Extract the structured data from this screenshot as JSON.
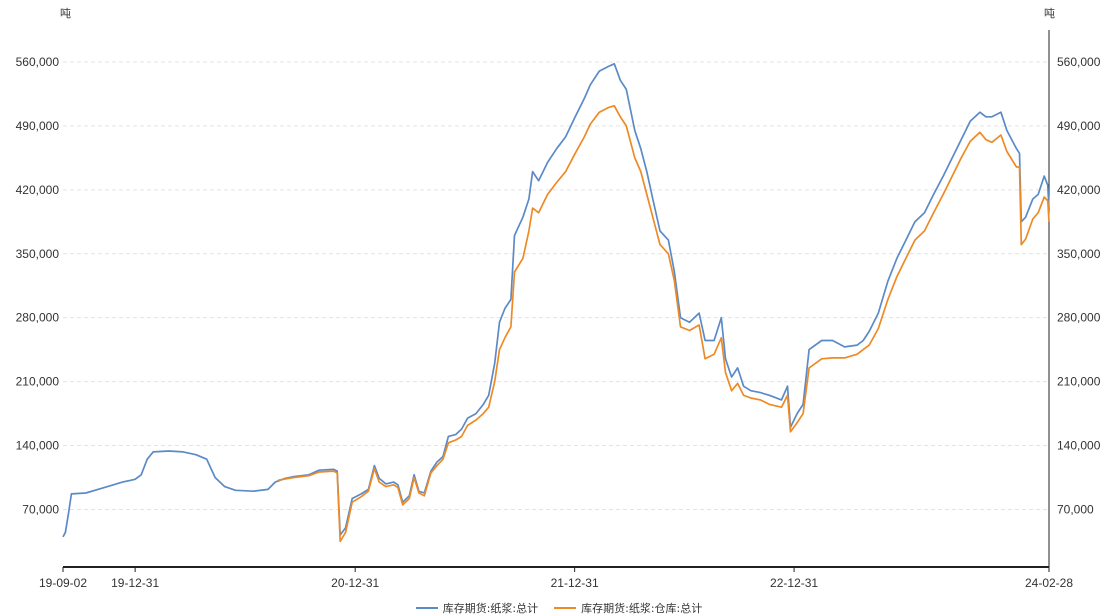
{
  "chart_data": {
    "type": "line",
    "unit_left": "吨",
    "unit_right": "吨",
    "ylim": [
      7000,
      595000
    ],
    "yticks": [
      70000,
      140000,
      210000,
      280000,
      350000,
      420000,
      490000,
      560000
    ],
    "ytick_labels": [
      "70,000",
      "140,000",
      "210,000",
      "280,000",
      "350,000",
      "420,000",
      "490,000",
      "560,000"
    ],
    "xlim": [
      "2019-09-02",
      "2024-02-28"
    ],
    "xticks": [
      "2019-09-02",
      "2019-12-31",
      "2020-12-31",
      "2021-12-31",
      "2022-12-31",
      "2024-02-28"
    ],
    "xtick_labels": [
      "19-09-02",
      "19-12-31",
      "20-12-31",
      "21-12-31",
      "22-12-31",
      "24-02-28"
    ],
    "grid": true,
    "legend_position": "bottom-center",
    "series": [
      {
        "name": "库存期货:纸浆:总计",
        "color": "#5b8ac8",
        "points": [
          [
            "2019-09-02",
            40000
          ],
          [
            "2019-09-06",
            45000
          ],
          [
            "2019-09-11",
            65000
          ],
          [
            "2019-09-16",
            87000
          ],
          [
            "2019-10-10",
            88000
          ],
          [
            "2019-10-30",
            92000
          ],
          [
            "2019-11-20",
            96000
          ],
          [
            "2019-12-10",
            100000
          ],
          [
            "2019-12-31",
            103000
          ],
          [
            "2020-01-10",
            108000
          ],
          [
            "2020-01-20",
            125000
          ],
          [
            "2020-01-30",
            133000
          ],
          [
            "2020-02-25",
            134000
          ],
          [
            "2020-03-20",
            133000
          ],
          [
            "2020-04-10",
            130000
          ],
          [
            "2020-04-28",
            125000
          ],
          [
            "2020-05-12",
            105000
          ],
          [
            "2020-05-28",
            95000
          ],
          [
            "2020-06-15",
            91000
          ],
          [
            "2020-07-15",
            90000
          ],
          [
            "2020-08-08",
            92000
          ],
          [
            "2020-08-20",
            100000
          ],
          [
            "2020-09-05",
            104000
          ],
          [
            "2020-09-20",
            106000
          ],
          [
            "2020-10-15",
            108000
          ],
          [
            "2020-11-01",
            113000
          ],
          [
            "2020-11-25",
            114000
          ],
          [
            "2020-12-01",
            112000
          ],
          [
            "2020-12-06",
            42000
          ],
          [
            "2020-12-15",
            50000
          ],
          [
            "2020-12-26",
            82000
          ],
          [
            "2021-01-10",
            87000
          ],
          [
            "2021-01-22",
            92000
          ],
          [
            "2021-02-01",
            118000
          ],
          [
            "2021-02-09",
            104000
          ],
          [
            "2021-02-20",
            98000
          ],
          [
            "2021-03-05",
            100000
          ],
          [
            "2021-03-12",
            97000
          ],
          [
            "2021-03-20",
            78000
          ],
          [
            "2021-03-31",
            85000
          ],
          [
            "2021-04-08",
            108000
          ],
          [
            "2021-04-16",
            90000
          ],
          [
            "2021-04-25",
            88000
          ],
          [
            "2021-05-06",
            112000
          ],
          [
            "2021-05-16",
            122000
          ],
          [
            "2021-05-26",
            128000
          ],
          [
            "2021-06-04",
            150000
          ],
          [
            "2021-06-16",
            152000
          ],
          [
            "2021-06-26",
            158000
          ],
          [
            "2021-07-06",
            170000
          ],
          [
            "2021-07-20",
            175000
          ],
          [
            "2021-08-01",
            185000
          ],
          [
            "2021-08-10",
            195000
          ],
          [
            "2021-08-20",
            230000
          ],
          [
            "2021-08-28",
            275000
          ],
          [
            "2021-09-06",
            290000
          ],
          [
            "2021-09-16",
            300000
          ],
          [
            "2021-09-22",
            370000
          ],
          [
            "2021-10-06",
            390000
          ],
          [
            "2021-10-16",
            410000
          ],
          [
            "2021-10-22",
            440000
          ],
          [
            "2021-11-01",
            430000
          ],
          [
            "2021-11-16",
            450000
          ],
          [
            "2021-12-01",
            465000
          ],
          [
            "2021-12-16",
            478000
          ],
          [
            "2022-01-01",
            500000
          ],
          [
            "2022-01-16",
            520000
          ],
          [
            "2022-01-26",
            535000
          ],
          [
            "2022-02-10",
            550000
          ],
          [
            "2022-02-25",
            555000
          ],
          [
            "2022-03-07",
            558000
          ],
          [
            "2022-03-17",
            540000
          ],
          [
            "2022-03-27",
            530000
          ],
          [
            "2022-04-10",
            485000
          ],
          [
            "2022-04-20",
            465000
          ],
          [
            "2022-04-30",
            440000
          ],
          [
            "2022-05-10",
            410000
          ],
          [
            "2022-05-22",
            375000
          ],
          [
            "2022-06-05",
            365000
          ],
          [
            "2022-06-15",
            330000
          ],
          [
            "2022-06-25",
            280000
          ],
          [
            "2022-07-10",
            275000
          ],
          [
            "2022-07-26",
            285000
          ],
          [
            "2022-08-05",
            255000
          ],
          [
            "2022-08-20",
            255000
          ],
          [
            "2022-09-01",
            280000
          ],
          [
            "2022-09-08",
            235000
          ],
          [
            "2022-09-18",
            215000
          ],
          [
            "2022-09-28",
            225000
          ],
          [
            "2022-10-08",
            205000
          ],
          [
            "2022-10-20",
            200000
          ],
          [
            "2022-11-05",
            198000
          ],
          [
            "2022-11-20",
            195000
          ],
          [
            "2022-12-10",
            190000
          ],
          [
            "2022-12-20",
            205000
          ],
          [
            "2022-12-25",
            160000
          ],
          [
            "2023-01-05",
            175000
          ],
          [
            "2023-01-15",
            185000
          ],
          [
            "2023-01-25",
            245000
          ],
          [
            "2023-02-15",
            255000
          ],
          [
            "2023-03-05",
            255000
          ],
          [
            "2023-03-25",
            248000
          ],
          [
            "2023-04-15",
            250000
          ],
          [
            "2023-04-25",
            255000
          ],
          [
            "2023-05-05",
            265000
          ],
          [
            "2023-05-20",
            285000
          ],
          [
            "2023-06-05",
            320000
          ],
          [
            "2023-06-20",
            345000
          ],
          [
            "2023-07-05",
            365000
          ],
          [
            "2023-07-20",
            385000
          ],
          [
            "2023-08-05",
            395000
          ],
          [
            "2023-08-20",
            415000
          ],
          [
            "2023-09-05",
            435000
          ],
          [
            "2023-09-20",
            455000
          ],
          [
            "2023-10-05",
            475000
          ],
          [
            "2023-10-20",
            495000
          ],
          [
            "2023-11-05",
            505000
          ],
          [
            "2023-11-15",
            500000
          ],
          [
            "2023-11-25",
            500000
          ],
          [
            "2023-12-10",
            505000
          ],
          [
            "2023-12-20",
            485000
          ],
          [
            "2024-01-05",
            465000
          ],
          [
            "2024-01-10",
            460000
          ],
          [
            "2024-01-13",
            385000
          ],
          [
            "2024-01-20",
            390000
          ],
          [
            "2024-02-01",
            410000
          ],
          [
            "2024-02-10",
            415000
          ],
          [
            "2024-02-20",
            435000
          ],
          [
            "2024-02-26",
            425000
          ],
          [
            "2024-02-28",
            398000
          ]
        ]
      },
      {
        "name": "库存期货:纸浆:仓库:总计",
        "color": "#ee8a26",
        "points": [
          [
            "2020-08-25",
            102000
          ],
          [
            "2020-09-20",
            105000
          ],
          [
            "2020-10-15",
            107000
          ],
          [
            "2020-11-01",
            111000
          ],
          [
            "2020-11-25",
            112000
          ],
          [
            "2020-12-01",
            110000
          ],
          [
            "2020-12-06",
            35000
          ],
          [
            "2020-12-15",
            45000
          ],
          [
            "2020-12-26",
            78000
          ],
          [
            "2021-01-10",
            84000
          ],
          [
            "2021-01-22",
            90000
          ],
          [
            "2021-02-01",
            115000
          ],
          [
            "2021-02-09",
            100000
          ],
          [
            "2021-02-20",
            95000
          ],
          [
            "2021-03-05",
            97000
          ],
          [
            "2021-03-12",
            94000
          ],
          [
            "2021-03-20",
            75000
          ],
          [
            "2021-03-31",
            82000
          ],
          [
            "2021-04-08",
            105000
          ],
          [
            "2021-04-16",
            88000
          ],
          [
            "2021-04-25",
            85000
          ],
          [
            "2021-05-06",
            110000
          ],
          [
            "2021-05-16",
            118000
          ],
          [
            "2021-05-26",
            125000
          ],
          [
            "2021-06-04",
            143000
          ],
          [
            "2021-06-16",
            146000
          ],
          [
            "2021-06-26",
            150000
          ],
          [
            "2021-07-06",
            162000
          ],
          [
            "2021-07-20",
            168000
          ],
          [
            "2021-08-01",
            175000
          ],
          [
            "2021-08-10",
            182000
          ],
          [
            "2021-08-20",
            210000
          ],
          [
            "2021-08-28",
            245000
          ],
          [
            "2021-09-06",
            258000
          ],
          [
            "2021-09-16",
            270000
          ],
          [
            "2021-09-22",
            330000
          ],
          [
            "2021-10-06",
            345000
          ],
          [
            "2021-10-16",
            375000
          ],
          [
            "2021-10-22",
            400000
          ],
          [
            "2021-11-01",
            395000
          ],
          [
            "2021-11-16",
            415000
          ],
          [
            "2021-12-01",
            428000
          ],
          [
            "2021-12-16",
            440000
          ],
          [
            "2022-01-01",
            460000
          ],
          [
            "2022-01-16",
            478000
          ],
          [
            "2022-01-26",
            492000
          ],
          [
            "2022-02-10",
            505000
          ],
          [
            "2022-02-25",
            510000
          ],
          [
            "2022-03-07",
            512000
          ],
          [
            "2022-03-17",
            500000
          ],
          [
            "2022-03-27",
            490000
          ],
          [
            "2022-04-10",
            455000
          ],
          [
            "2022-04-20",
            440000
          ],
          [
            "2022-04-30",
            415000
          ],
          [
            "2022-05-10",
            390000
          ],
          [
            "2022-05-22",
            360000
          ],
          [
            "2022-06-05",
            350000
          ],
          [
            "2022-06-15",
            320000
          ],
          [
            "2022-06-25",
            270000
          ],
          [
            "2022-07-10",
            266000
          ],
          [
            "2022-07-26",
            272000
          ],
          [
            "2022-08-05",
            235000
          ],
          [
            "2022-08-20",
            240000
          ],
          [
            "2022-09-01",
            258000
          ],
          [
            "2022-09-08",
            220000
          ],
          [
            "2022-09-18",
            200000
          ],
          [
            "2022-09-28",
            208000
          ],
          [
            "2022-10-08",
            195000
          ],
          [
            "2022-10-20",
            192000
          ],
          [
            "2022-11-05",
            190000
          ],
          [
            "2022-11-20",
            185000
          ],
          [
            "2022-12-10",
            182000
          ],
          [
            "2022-12-20",
            195000
          ],
          [
            "2022-12-25",
            155000
          ],
          [
            "2023-01-05",
            165000
          ],
          [
            "2023-01-15",
            175000
          ],
          [
            "2023-01-25",
            225000
          ],
          [
            "2023-02-15",
            235000
          ],
          [
            "2023-03-05",
            236000
          ],
          [
            "2023-03-25",
            236000
          ],
          [
            "2023-04-15",
            240000
          ],
          [
            "2023-04-25",
            245000
          ],
          [
            "2023-05-05",
            250000
          ],
          [
            "2023-05-20",
            268000
          ],
          [
            "2023-06-05",
            300000
          ],
          [
            "2023-06-20",
            325000
          ],
          [
            "2023-07-05",
            345000
          ],
          [
            "2023-07-20",
            365000
          ],
          [
            "2023-08-05",
            375000
          ],
          [
            "2023-08-20",
            395000
          ],
          [
            "2023-09-05",
            415000
          ],
          [
            "2023-09-20",
            435000
          ],
          [
            "2023-10-05",
            455000
          ],
          [
            "2023-10-20",
            473000
          ],
          [
            "2023-11-05",
            483000
          ],
          [
            "2023-11-15",
            475000
          ],
          [
            "2023-11-25",
            472000
          ],
          [
            "2023-12-10",
            480000
          ],
          [
            "2023-12-20",
            462000
          ],
          [
            "2024-01-05",
            445000
          ],
          [
            "2024-01-10",
            445000
          ],
          [
            "2024-01-13",
            360000
          ],
          [
            "2024-01-20",
            366000
          ],
          [
            "2024-02-01",
            388000
          ],
          [
            "2024-02-10",
            395000
          ],
          [
            "2024-02-20",
            412000
          ],
          [
            "2024-02-26",
            408000
          ],
          [
            "2024-02-28",
            385000
          ]
        ]
      }
    ]
  }
}
